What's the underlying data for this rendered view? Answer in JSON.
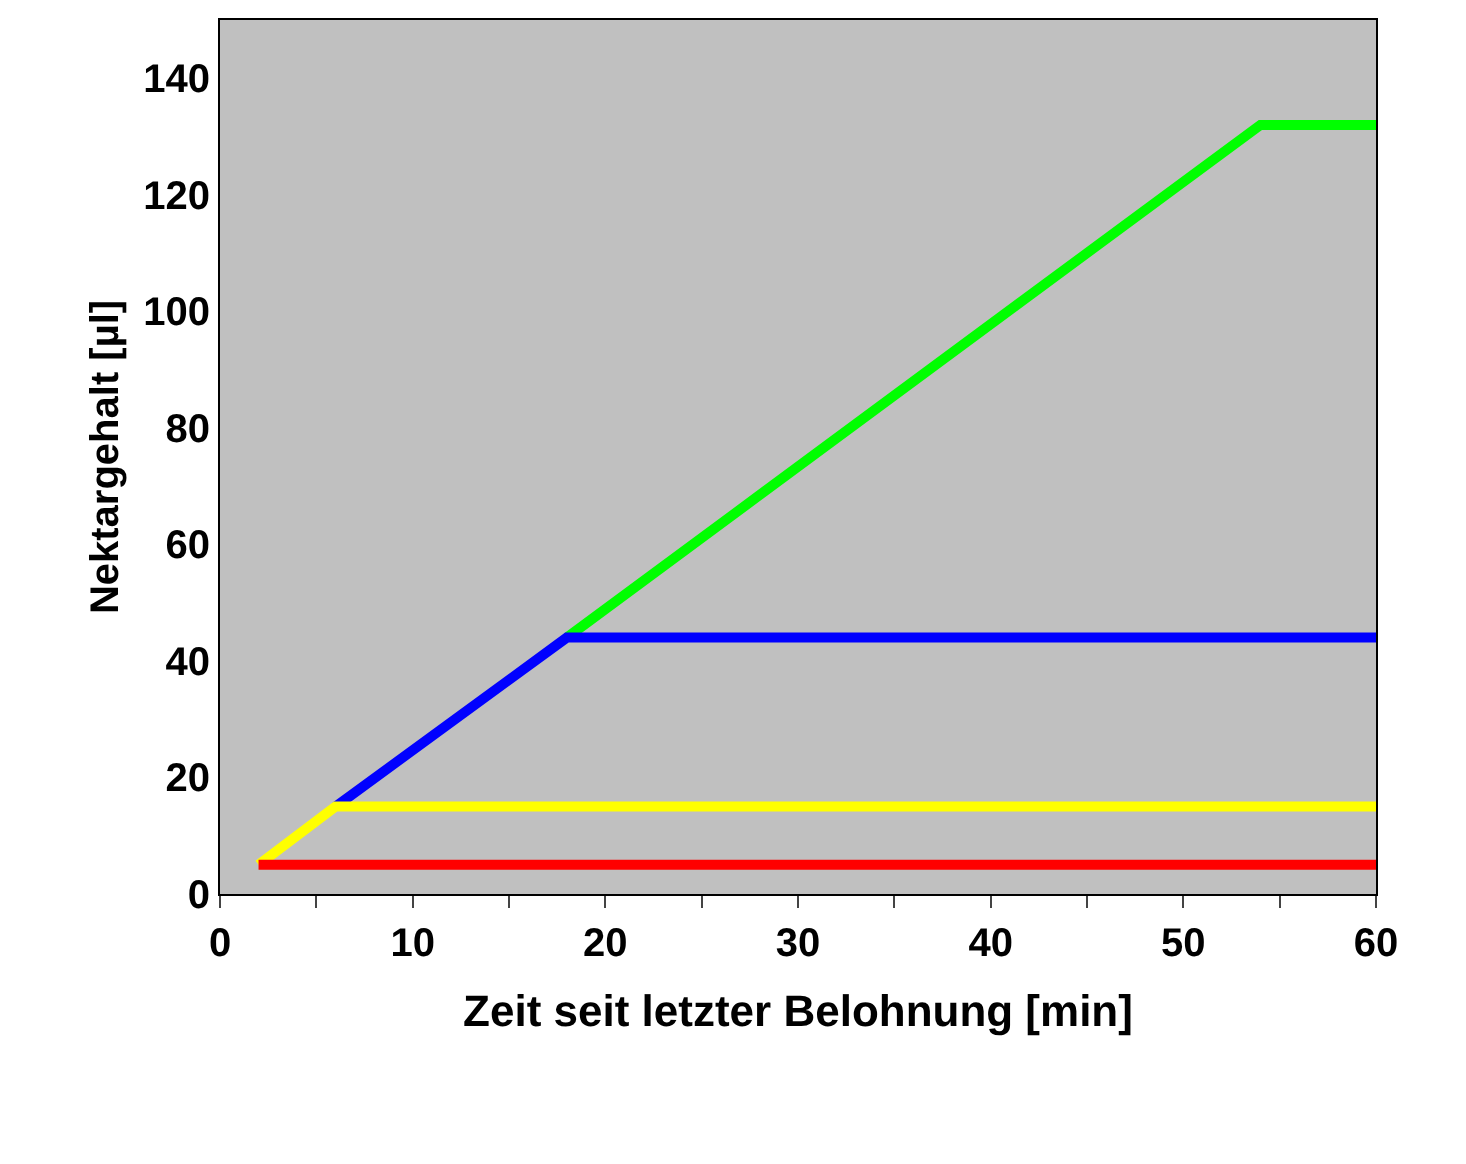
{
  "chart_data": {
    "type": "line",
    "xlabel": "Zeit seit letzter Belohnung [min]",
    "ylabel": "Nektargehalt [µl]",
    "xlim": [
      0,
      60
    ],
    "ylim": [
      0,
      150
    ],
    "xticks": [
      0,
      {
        "value": 5,
        "label": null
      },
      10,
      {
        "value": 15,
        "label": null
      },
      20,
      {
        "value": 25,
        "label": null
      },
      30,
      {
        "value": 35,
        "label": null
      },
      40,
      {
        "value": 45,
        "label": null
      },
      50,
      {
        "value": 55,
        "label": null
      },
      60
    ],
    "yticks": [
      0,
      20,
      40,
      60,
      80,
      100,
      120,
      140
    ],
    "grid": false,
    "marker": "none",
    "line_style": "solid",
    "series": [
      {
        "color": "#00ff00",
        "x": [
          18,
          54,
          60
        ],
        "values": [
          44,
          132,
          132
        ]
      },
      {
        "color": "#0000ff",
        "x": [
          6,
          18,
          60
        ],
        "values": [
          15,
          44,
          44
        ]
      },
      {
        "color": "#ffff00",
        "x": [
          2,
          6,
          60
        ],
        "values": [
          5,
          15,
          15
        ]
      },
      {
        "color": "#ff0000",
        "x": [
          2,
          60
        ],
        "values": [
          5,
          5
        ]
      }
    ]
  }
}
